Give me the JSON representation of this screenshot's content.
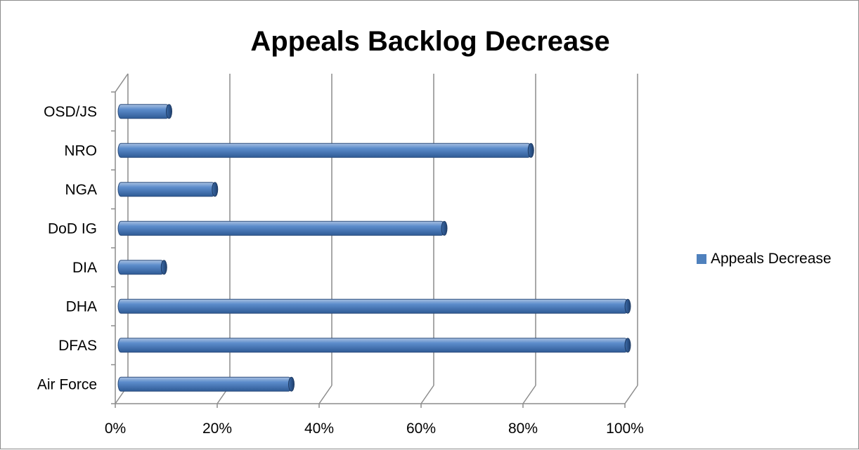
{
  "chart_data": {
    "type": "bar",
    "orientation": "horizontal",
    "title": "Appeals Backlog Decrease",
    "categories": [
      "Air Force",
      "DFAS",
      "DHA",
      "DIA",
      "DoD IG",
      "NGA",
      "NRO",
      "OSD/JS"
    ],
    "series": [
      {
        "name": "Appeals Decrease",
        "values": [
          0.34,
          1.0,
          1.0,
          0.09,
          0.64,
          0.19,
          0.81,
          0.1
        ]
      }
    ],
    "xlim": [
      0,
      1
    ],
    "x_ticks": [
      "0%",
      "20%",
      "40%",
      "60%",
      "80%",
      "100%"
    ],
    "xlabel": "",
    "ylabel": "",
    "grid": true,
    "legend_position": "right",
    "bar_color": "#4f81bd"
  }
}
